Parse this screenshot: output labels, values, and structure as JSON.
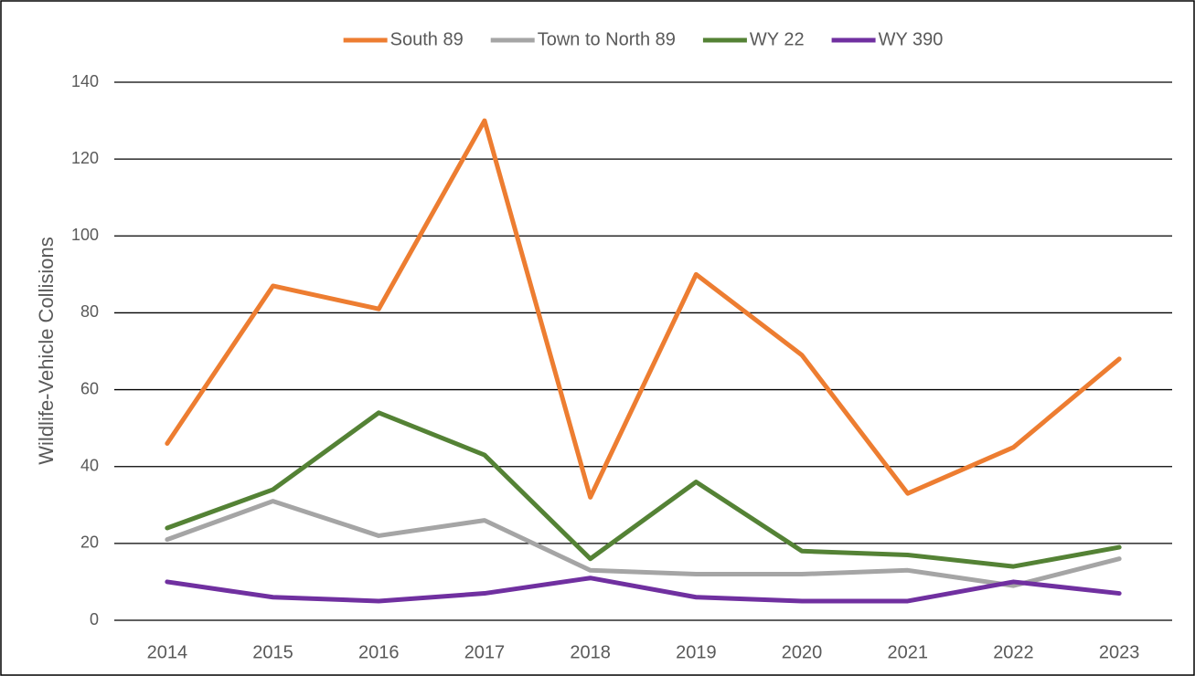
{
  "chart_data": {
    "type": "line",
    "y_label": "Wildlife-Vehicle Collisions",
    "categories": [
      "2014",
      "2015",
      "2016",
      "2017",
      "2018",
      "2019",
      "2020",
      "2021",
      "2022",
      "2023"
    ],
    "series": [
      {
        "name": "South 89",
        "color": "#ed7d31",
        "values": [
          46,
          87,
          81,
          130,
          32,
          90,
          69,
          33,
          45,
          68
        ]
      },
      {
        "name": "Town to North 89",
        "color": "#a5a5a5",
        "values": [
          21,
          31,
          22,
          26,
          13,
          12,
          12,
          13,
          9,
          16
        ]
      },
      {
        "name": "WY 22",
        "color": "#548235",
        "values": [
          24,
          34,
          54,
          43,
          16,
          36,
          18,
          17,
          14,
          19
        ]
      },
      {
        "name": "WY 390",
        "color": "#7030a0",
        "values": [
          10,
          6,
          5,
          7,
          11,
          6,
          5,
          5,
          10,
          7
        ]
      }
    ],
    "ylim": [
      0,
      140
    ],
    "yticks": [
      0,
      20,
      40,
      60,
      80,
      100,
      120,
      140
    ],
    "grid": true,
    "legend": "top"
  }
}
